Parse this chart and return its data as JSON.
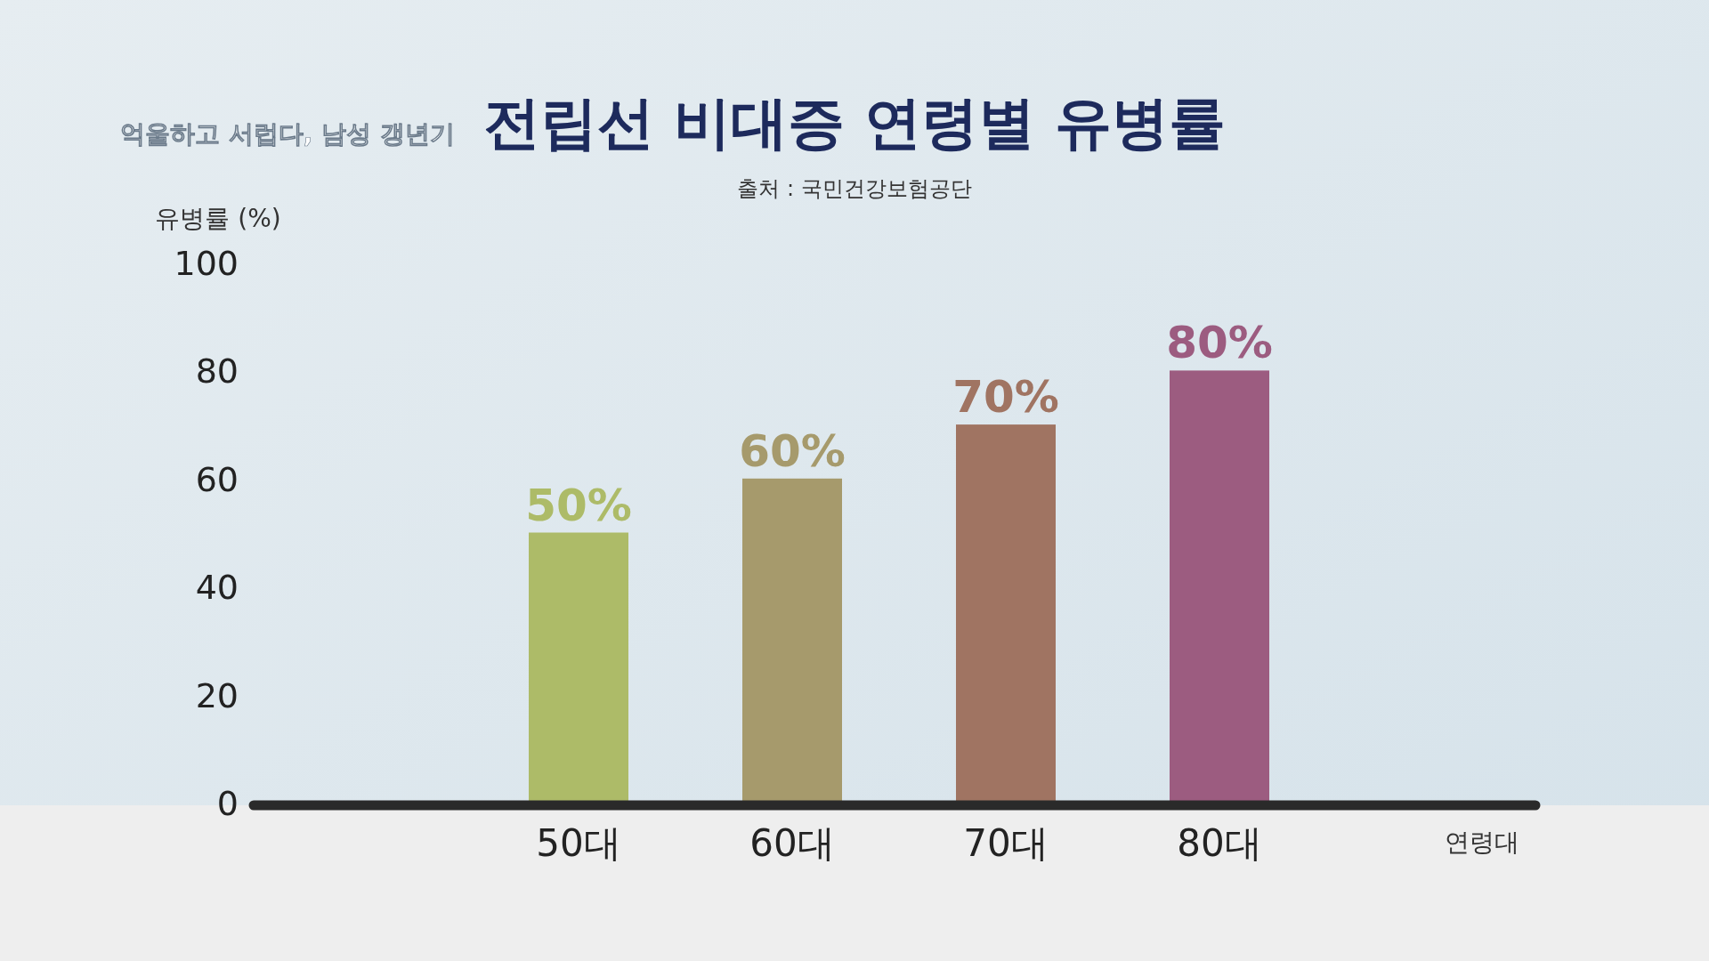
{
  "chart_data": {
    "type": "bar",
    "title": "전립선 비대증 연령별 유병률",
    "subtitle": "출처 : 국민건강보험공단",
    "annotations": [
      "억울하고 서럽다, 남성 갱년기"
    ],
    "categories": [
      "50대",
      "60대",
      "70대",
      "80대"
    ],
    "values": [
      50,
      60,
      70,
      80
    ],
    "colors": [
      "#adbb68",
      "#a69a6c",
      "#a07462",
      "#9c5c80"
    ],
    "value_labels": [
      "50%",
      "60%",
      "70%",
      "80%"
    ],
    "ylim": [
      0,
      100
    ],
    "yticks": [
      0,
      20,
      40,
      60,
      80,
      100
    ],
    "ylabel": "유병률 (%)",
    "xlabel": "연령대"
  }
}
